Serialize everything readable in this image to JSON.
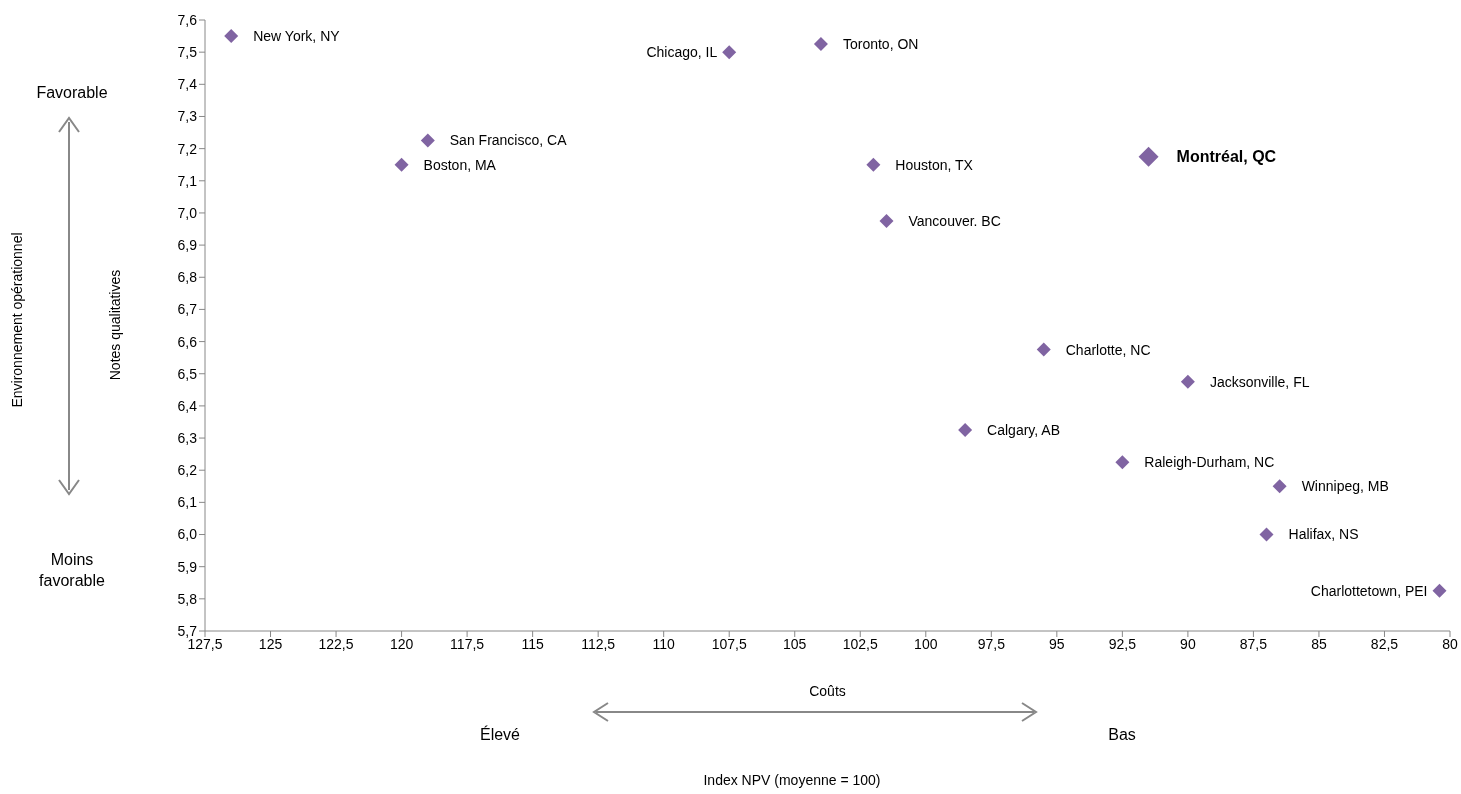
{
  "chart_data": {
    "type": "scatter",
    "xlabel": "Coûts",
    "ylabel": "Notes qualitatives",
    "series": [
      {
        "color": "#8064a2",
        "x": [
          126.5,
          107.5,
          104.0,
          119.0,
          120.0,
          102.0,
          101.5,
          95.5,
          90.0,
          98.5,
          92.5,
          86.5,
          87.0,
          80.4
        ],
        "values": [
          7.55,
          7.5,
          7.525,
          7.225,
          7.15,
          7.15,
          6.975,
          6.575,
          6.475,
          6.325,
          6.225,
          6.15,
          6.0,
          5.825
        ]
      },
      {
        "color": "#8064a2",
        "x": [
          91.5
        ],
        "values": [
          7.175
        ]
      }
    ],
    "marker": "diamond",
    "grid": false,
    "xlim": [
      127.5,
      80
    ],
    "xticks": [
      {
        "value": 127.5,
        "label": "127,5"
      },
      125,
      {
        "value": 122.5,
        "label": "122,5"
      },
      120,
      {
        "value": 117.5,
        "label": "117,5"
      },
      115,
      {
        "value": 112.5,
        "label": "112,5"
      },
      110,
      {
        "value": 107.5,
        "label": "107,5"
      },
      105,
      {
        "value": 102.5,
        "label": "102,5"
      },
      100,
      {
        "value": 97.5,
        "label": "97,5"
      },
      95,
      {
        "value": 92.5,
        "label": "92,5"
      },
      90,
      {
        "value": 87.5,
        "label": "87,5"
      },
      85,
      {
        "value": 82.5,
        "label": "82,5"
      },
      80
    ],
    "ylim": [
      5.7,
      7.6
    ],
    "yticks": [
      {
        "value": 5.7,
        "label": "5,7"
      },
      {
        "value": 5.8,
        "label": "5,8"
      },
      {
        "value": 5.9,
        "label": "5,9"
      },
      {
        "value": 6.0,
        "label": "6,0"
      },
      {
        "value": 6.1,
        "label": "6,1"
      },
      {
        "value": 6.2,
        "label": "6,2"
      },
      {
        "value": 6.3,
        "label": "6,3"
      },
      {
        "value": 6.4,
        "label": "6,4"
      },
      {
        "value": 6.5,
        "label": "6,5"
      },
      {
        "value": 6.6,
        "label": "6,6"
      },
      {
        "value": 6.7,
        "label": "6,7"
      },
      {
        "value": 6.8,
        "label": "6,8"
      },
      {
        "value": 6.9,
        "label": "6,9"
      },
      {
        "value": 7.0,
        "label": "7,0"
      },
      {
        "value": 7.1,
        "label": "7,1"
      },
      {
        "value": 7.2,
        "label": "7,2"
      },
      {
        "value": 7.3,
        "label": "7,3"
      },
      {
        "value": 7.4,
        "label": "7,4"
      },
      {
        "value": 7.5,
        "label": "7,5"
      },
      {
        "value": 7.6,
        "label": "7,6"
      }
    ],
    "annotations": [
      "Favorable",
      "Moins favorable",
      "Élevé",
      "Bas",
      "Environnement opérationnel",
      "Index NPV (moyenne = 100)",
      {
        "text": "New York, NY",
        "x": 126.5,
        "y": 7.55
      },
      {
        "text": "Chicago, IL",
        "x": 107.5,
        "y": 7.5
      },
      {
        "text": "Toronto, ON",
        "x": 104.0,
        "y": 7.525
      },
      {
        "text": "San Francisco, CA",
        "x": 119.0,
        "y": 7.225
      },
      {
        "text": "Boston, MA",
        "x": 120.0,
        "y": 7.15
      },
      {
        "text": "Houston, TX",
        "x": 102.0,
        "y": 7.15
      },
      {
        "text": "Montréal, QC",
        "x": 91.5,
        "y": 7.175
      },
      {
        "text": "Vancouver. BC",
        "x": 101.5,
        "y": 6.975
      },
      {
        "text": "Charlotte, NC",
        "x": 95.5,
        "y": 6.575
      },
      {
        "text": "Jacksonville, FL",
        "x": 90.0,
        "y": 6.475
      },
      {
        "text": "Calgary, AB",
        "x": 98.5,
        "y": 6.325
      },
      {
        "text": "Raleigh-Durham, NC",
        "x": 92.5,
        "y": 6.225
      },
      {
        "text": "Winnipeg, MB",
        "x": 86.5,
        "y": 6.15
      },
      {
        "text": "Halifax, NS",
        "x": 87.0,
        "y": 6.0
      },
      {
        "text": "Charlottetown, PEI",
        "x": 80.4,
        "y": 5.825
      }
    ]
  }
}
